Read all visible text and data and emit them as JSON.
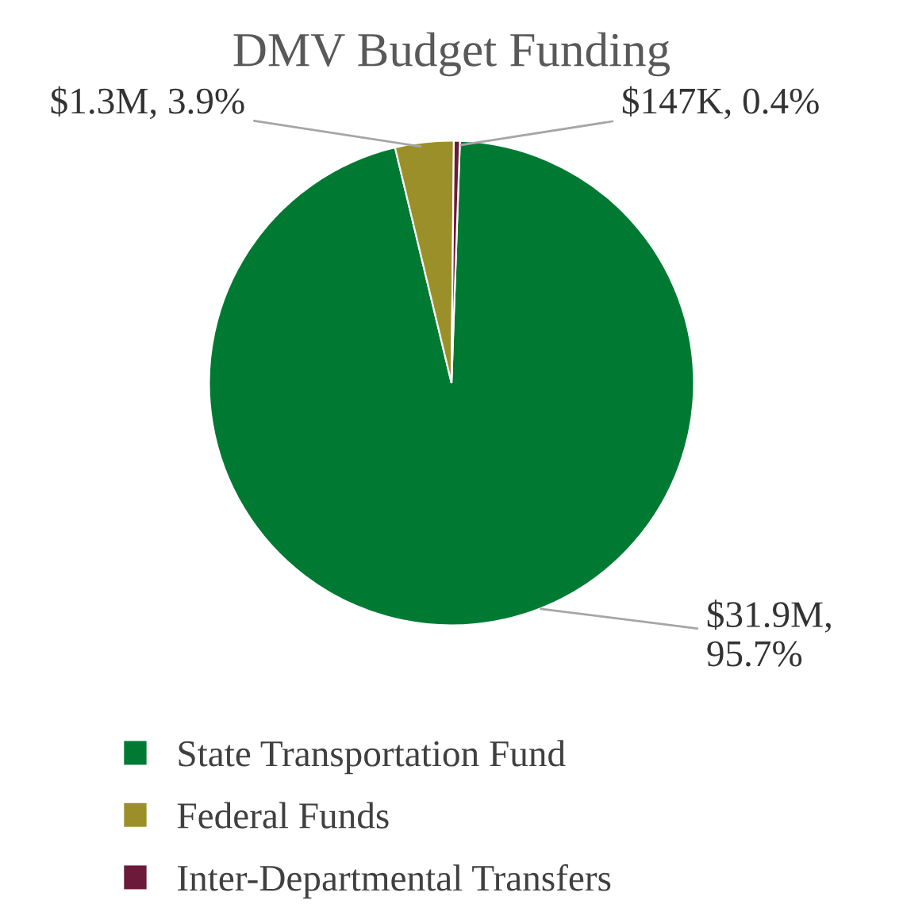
{
  "chart_data": {
    "type": "pie",
    "title": "DMV Budget Funding",
    "categories": [
      "State Transportation Fund",
      "Federal Funds",
      "Inter-Departmental Transfers"
    ],
    "values": [
      95.7,
      3.9,
      0.4
    ],
    "colors": [
      "#007a33",
      "#9b8f2a",
      "#6b1a3a"
    ],
    "value_labels": [
      "$31.9M,\n95.7%",
      "$1.3M, 3.9%",
      "$147K, 0.4%"
    ],
    "legend": "bottom"
  }
}
